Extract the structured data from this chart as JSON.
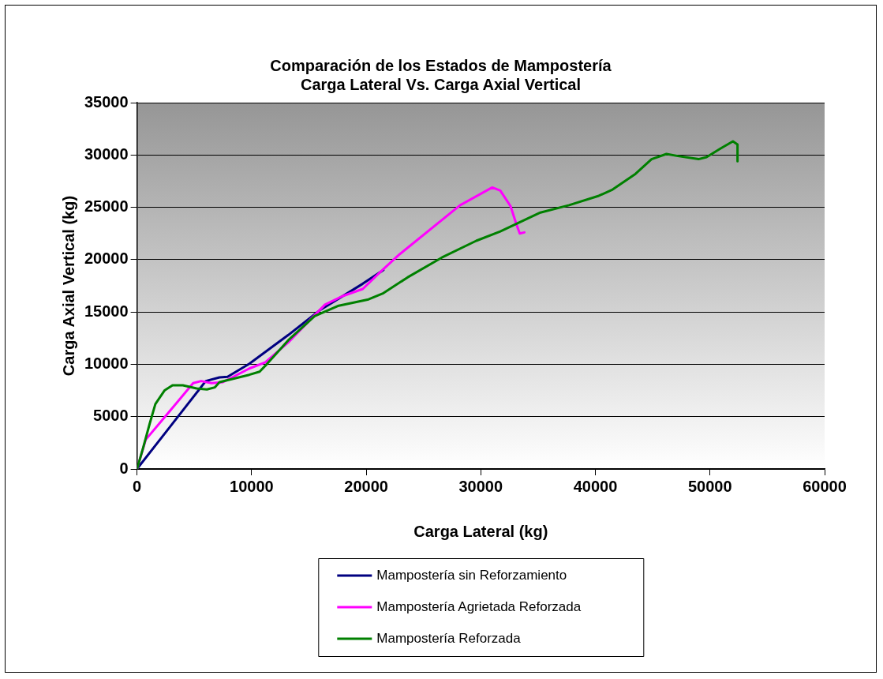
{
  "chart_data": {
    "type": "line",
    "title": "Comparación de los Estados de Mampostería\nCarga Lateral Vs. Carga Axial Vertical",
    "xlabel": "Carga Lateral (kg)",
    "ylabel": "Carga Axial Vertical (kg)",
    "xlim": [
      0,
      60000
    ],
    "xticks": [
      0,
      10000,
      20000,
      30000,
      40000,
      50000,
      60000
    ],
    "ylim": [
      0,
      35000
    ],
    "yticks": [
      0,
      5000,
      10000,
      15000,
      20000,
      25000,
      30000,
      35000
    ],
    "grid": "y",
    "legend": "bottom",
    "marker": "none",
    "line_style": "solid",
    "series": [
      {
        "name": "Mampostería sin Reforzamiento",
        "color": "#000080",
        "x": [
          0,
          3000,
          6000,
          7200,
          7900,
          9800,
          13200,
          16000,
          19700,
          21500
        ],
        "values": [
          0,
          4200,
          8400,
          8750,
          8800,
          10050,
          12800,
          15200,
          17700,
          19000
        ]
      },
      {
        "name": "Mampostería Agrietada Reforzada",
        "color": "#ff00ff",
        "x": [
          0,
          760,
          2840,
          4900,
          5600,
          6500,
          7500,
          9800,
          11200,
          13200,
          16400,
          17900,
          19700,
          21500,
          22900,
          28200,
          31000,
          31700,
          32600,
          33100,
          33400,
          33800
        ],
        "values": [
          0,
          2800,
          5500,
          8200,
          8400,
          8200,
          8300,
          9600,
          10200,
          12100,
          15700,
          16500,
          17200,
          19100,
          20500,
          25200,
          26900,
          26600,
          25100,
          23400,
          22500,
          22600
        ]
      },
      {
        "name": "Mampostería Reforzada",
        "color": "#008000",
        "x": [
          0,
          530,
          1100,
          1600,
          2400,
          3100,
          4000,
          5200,
          6100,
          6800,
          7200,
          9800,
          10700,
          11400,
          13200,
          15500,
          17600,
          20200,
          21500,
          23600,
          26600,
          29600,
          31700,
          35200,
          37700,
          40300,
          41500,
          43500,
          44900,
          46200,
          47200,
          49000,
          49700,
          50900,
          52000,
          52400,
          52400
        ],
        "values": [
          0,
          2000,
          4300,
          6200,
          7500,
          8000,
          8000,
          7700,
          7600,
          7800,
          8300,
          9000,
          9300,
          10100,
          12300,
          14600,
          15600,
          16200,
          16800,
          18300,
          20200,
          21800,
          22700,
          24500,
          25200,
          26100,
          26700,
          28200,
          29600,
          30100,
          29900,
          29600,
          29800,
          30600,
          31300,
          31000,
          29400
        ]
      }
    ]
  }
}
